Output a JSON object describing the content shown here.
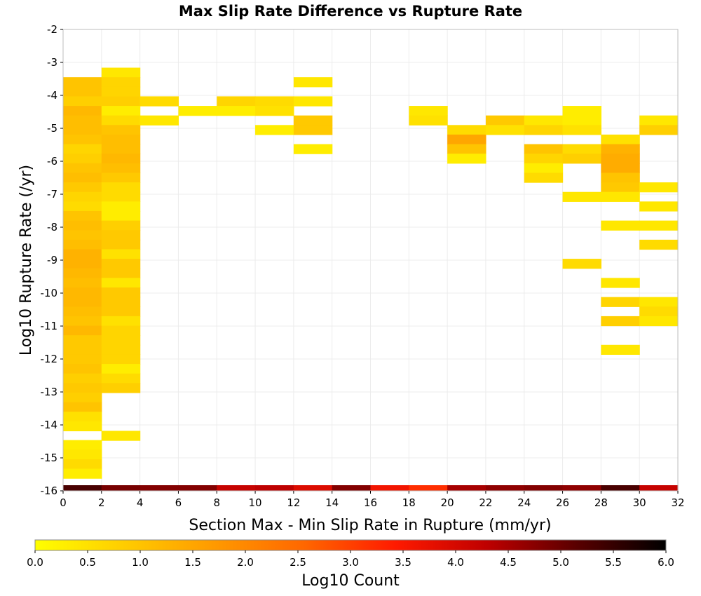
{
  "chart_data": {
    "type": "heatmap",
    "title": "Max Slip Rate Difference vs Rupture Rate",
    "xlabel": "Section Max - Min Slip Rate in Rupture (mm/yr)",
    "ylabel": "Log10 Rupture Rate (/yr)",
    "xlim": [
      0,
      32
    ],
    "ylim": [
      -16,
      -2
    ],
    "x_ticks": [
      "0",
      "2",
      "4",
      "6",
      "8",
      "10",
      "12",
      "14",
      "16",
      "18",
      "20",
      "22",
      "24",
      "26",
      "28",
      "30",
      "32"
    ],
    "y_ticks": [
      "-2",
      "-3",
      "-4",
      "-5",
      "-6",
      "-7",
      "-8",
      "-9",
      "-10",
      "-11",
      "-12",
      "-13",
      "-14",
      "-15",
      "-16"
    ],
    "x_bin_width": 2,
    "y_bin_height": 0.29,
    "grid": true,
    "colorbar": {
      "label": "Log10 Count",
      "range": [
        0,
        6
      ],
      "ticks": [
        "0.0",
        "0.5",
        "1.0",
        "1.5",
        "2.0",
        "2.5",
        "3.0",
        "3.5",
        "4.0",
        "4.5",
        "5.0",
        "5.5",
        "6.0"
      ],
      "stops": [
        "#ffff00",
        "#ffcc00",
        "#ff9900",
        "#ff6600",
        "#ff1a00",
        "#c00000",
        "#5a0000",
        "#000000"
      ]
    },
    "cells": [
      {
        "x": 0,
        "y": -3.74,
        "v": 1.0
      },
      {
        "x": 0,
        "y": -4.03,
        "v": 1.0
      },
      {
        "x": 0,
        "y": -4.32,
        "v": 0.8
      },
      {
        "x": 0,
        "y": -4.61,
        "v": 1.2
      },
      {
        "x": 0,
        "y": -4.9,
        "v": 1.1
      },
      {
        "x": 0,
        "y": -5.19,
        "v": 1.1
      },
      {
        "x": 0,
        "y": -5.48,
        "v": 1.0
      },
      {
        "x": 0,
        "y": -5.77,
        "v": 0.7
      },
      {
        "x": 0,
        "y": -6.06,
        "v": 0.8
      },
      {
        "x": 0,
        "y": -6.35,
        "v": 1.0
      },
      {
        "x": 0,
        "y": -6.64,
        "v": 1.1
      },
      {
        "x": 0,
        "y": -6.93,
        "v": 0.9
      },
      {
        "x": 0,
        "y": -7.22,
        "v": 0.7
      },
      {
        "x": 0,
        "y": -7.51,
        "v": 0.6
      },
      {
        "x": 0,
        "y": -7.8,
        "v": 1.0
      },
      {
        "x": 0,
        "y": -8.09,
        "v": 1.1
      },
      {
        "x": 0,
        "y": -8.38,
        "v": 1.0
      },
      {
        "x": 0,
        "y": -8.67,
        "v": 1.1
      },
      {
        "x": 0,
        "y": -8.96,
        "v": 1.3
      },
      {
        "x": 0,
        "y": -9.25,
        "v": 1.3
      },
      {
        "x": 0,
        "y": -9.54,
        "v": 1.2
      },
      {
        "x": 0,
        "y": -9.83,
        "v": 1.1
      },
      {
        "x": 0,
        "y": -10.12,
        "v": 1.2
      },
      {
        "x": 0,
        "y": -10.41,
        "v": 1.2
      },
      {
        "x": 0,
        "y": -10.7,
        "v": 1.1
      },
      {
        "x": 0,
        "y": -10.99,
        "v": 1.0
      },
      {
        "x": 0,
        "y": -11.28,
        "v": 1.2
      },
      {
        "x": 0,
        "y": -11.57,
        "v": 0.9
      },
      {
        "x": 0,
        "y": -11.86,
        "v": 0.9
      },
      {
        "x": 0,
        "y": -12.15,
        "v": 0.9
      },
      {
        "x": 0,
        "y": -12.44,
        "v": 1.0
      },
      {
        "x": 0,
        "y": -12.73,
        "v": 0.8
      },
      {
        "x": 0,
        "y": -13.02,
        "v": 0.9
      },
      {
        "x": 0,
        "y": -13.31,
        "v": 0.8
      },
      {
        "x": 0,
        "y": -13.6,
        "v": 1.0
      },
      {
        "x": 0,
        "y": -13.89,
        "v": 0.5
      },
      {
        "x": 0,
        "y": -14.18,
        "v": 0.4
      },
      {
        "x": 0,
        "y": -14.75,
        "v": 0.3
      },
      {
        "x": 0,
        "y": -15.04,
        "v": 0.4
      },
      {
        "x": 0,
        "y": -15.33,
        "v": 0.6
      },
      {
        "x": 0,
        "y": -15.62,
        "v": 0.3
      },
      {
        "x": 2,
        "y": -3.45,
        "v": 0.4
      },
      {
        "x": 2,
        "y": -3.74,
        "v": 0.7
      },
      {
        "x": 2,
        "y": -4.03,
        "v": 0.7
      },
      {
        "x": 2,
        "y": -4.32,
        "v": 0.8
      },
      {
        "x": 2,
        "y": -4.61,
        "v": 0.3
      },
      {
        "x": 2,
        "y": -4.9,
        "v": 0.6
      },
      {
        "x": 2,
        "y": -5.19,
        "v": 1.0
      },
      {
        "x": 2,
        "y": -5.48,
        "v": 1.1
      },
      {
        "x": 2,
        "y": -5.77,
        "v": 1.1
      },
      {
        "x": 2,
        "y": -6.06,
        "v": 1.2
      },
      {
        "x": 2,
        "y": -6.35,
        "v": 1.1
      },
      {
        "x": 2,
        "y": -6.64,
        "v": 0.9
      },
      {
        "x": 2,
        "y": -6.93,
        "v": 0.6
      },
      {
        "x": 2,
        "y": -7.22,
        "v": 0.6
      },
      {
        "x": 2,
        "y": -7.51,
        "v": 0.3
      },
      {
        "x": 2,
        "y": -7.8,
        "v": 0.3
      },
      {
        "x": 2,
        "y": -8.09,
        "v": 0.8
      },
      {
        "x": 2,
        "y": -8.38,
        "v": 0.9
      },
      {
        "x": 2,
        "y": -8.67,
        "v": 0.9
      },
      {
        "x": 2,
        "y": -8.96,
        "v": 0.5
      },
      {
        "x": 2,
        "y": -9.25,
        "v": 0.9
      },
      {
        "x": 2,
        "y": -9.54,
        "v": 0.9
      },
      {
        "x": 2,
        "y": -9.83,
        "v": 0.4
      },
      {
        "x": 2,
        "y": -10.12,
        "v": 0.9
      },
      {
        "x": 2,
        "y": -10.41,
        "v": 0.9
      },
      {
        "x": 2,
        "y": -10.7,
        "v": 0.9
      },
      {
        "x": 2,
        "y": -10.99,
        "v": 0.5
      },
      {
        "x": 2,
        "y": -11.28,
        "v": 0.7
      },
      {
        "x": 2,
        "y": -11.57,
        "v": 0.7
      },
      {
        "x": 2,
        "y": -11.86,
        "v": 0.7
      },
      {
        "x": 2,
        "y": -12.15,
        "v": 0.7
      },
      {
        "x": 2,
        "y": -12.44,
        "v": 0.3
      },
      {
        "x": 2,
        "y": -12.73,
        "v": 0.6
      },
      {
        "x": 2,
        "y": -13.02,
        "v": 0.8
      },
      {
        "x": 2,
        "y": -14.47,
        "v": 0.4
      },
      {
        "x": 4,
        "y": -4.32,
        "v": 0.6
      },
      {
        "x": 4,
        "y": -4.9,
        "v": 0.4
      },
      {
        "x": 6,
        "y": -4.61,
        "v": 0.3
      },
      {
        "x": 8,
        "y": -4.32,
        "v": 0.7
      },
      {
        "x": 8,
        "y": -4.61,
        "v": 0.3
      },
      {
        "x": 10,
        "y": -4.32,
        "v": 0.6
      },
      {
        "x": 10,
        "y": -4.61,
        "v": 0.5
      },
      {
        "x": 10,
        "y": -5.19,
        "v": 0.3
      },
      {
        "x": 12,
        "y": -3.74,
        "v": 0.4
      },
      {
        "x": 12,
        "y": -4.32,
        "v": 0.4
      },
      {
        "x": 12,
        "y": -4.9,
        "v": 0.9
      },
      {
        "x": 12,
        "y": -5.19,
        "v": 0.9
      },
      {
        "x": 12,
        "y": -5.77,
        "v": 0.3
      },
      {
        "x": 18,
        "y": -4.61,
        "v": 0.4
      },
      {
        "x": 18,
        "y": -4.9,
        "v": 0.5
      },
      {
        "x": 20,
        "y": -5.19,
        "v": 0.6
      },
      {
        "x": 20,
        "y": -5.48,
        "v": 1.5
      },
      {
        "x": 20,
        "y": -5.77,
        "v": 1.0
      },
      {
        "x": 20,
        "y": -6.06,
        "v": 0.3
      },
      {
        "x": 22,
        "y": -4.9,
        "v": 0.9
      },
      {
        "x": 22,
        "y": -5.19,
        "v": 0.5
      },
      {
        "x": 24,
        "y": -4.9,
        "v": 0.4
      },
      {
        "x": 24,
        "y": -5.19,
        "v": 0.7
      },
      {
        "x": 24,
        "y": -5.77,
        "v": 1.0
      },
      {
        "x": 24,
        "y": -6.06,
        "v": 0.7
      },
      {
        "x": 24,
        "y": -6.35,
        "v": 0.3
      },
      {
        "x": 24,
        "y": -6.64,
        "v": 0.6
      },
      {
        "x": 26,
        "y": -4.61,
        "v": 0.3
      },
      {
        "x": 26,
        "y": -4.9,
        "v": 0.3
      },
      {
        "x": 26,
        "y": -5.19,
        "v": 0.5
      },
      {
        "x": 26,
        "y": -5.77,
        "v": 0.6
      },
      {
        "x": 26,
        "y": -6.06,
        "v": 0.8
      },
      {
        "x": 26,
        "y": -7.22,
        "v": 0.4
      },
      {
        "x": 26,
        "y": -9.25,
        "v": 0.6
      },
      {
        "x": 28,
        "y": -5.48,
        "v": 0.5
      },
      {
        "x": 28,
        "y": -5.77,
        "v": 1.3
      },
      {
        "x": 28,
        "y": -6.06,
        "v": 1.4
      },
      {
        "x": 28,
        "y": -6.35,
        "v": 1.4
      },
      {
        "x": 28,
        "y": -6.64,
        "v": 1.0
      },
      {
        "x": 28,
        "y": -6.93,
        "v": 0.9
      },
      {
        "x": 28,
        "y": -7.22,
        "v": 0.4
      },
      {
        "x": 28,
        "y": -8.09,
        "v": 0.4
      },
      {
        "x": 28,
        "y": -9.83,
        "v": 0.4
      },
      {
        "x": 28,
        "y": -10.41,
        "v": 0.7
      },
      {
        "x": 28,
        "y": -10.99,
        "v": 0.8
      },
      {
        "x": 28,
        "y": -11.86,
        "v": 0.4
      },
      {
        "x": 30,
        "y": -4.9,
        "v": 0.4
      },
      {
        "x": 30,
        "y": -5.19,
        "v": 0.8
      },
      {
        "x": 30,
        "y": -6.93,
        "v": 0.4
      },
      {
        "x": 30,
        "y": -7.51,
        "v": 0.4
      },
      {
        "x": 30,
        "y": -8.09,
        "v": 0.4
      },
      {
        "x": 30,
        "y": -8.67,
        "v": 0.6
      },
      {
        "x": 30,
        "y": -10.41,
        "v": 0.4
      },
      {
        "x": 30,
        "y": -10.7,
        "v": 0.6
      },
      {
        "x": 30,
        "y": -10.99,
        "v": 0.4
      }
    ],
    "bottom_row": {
      "y": -16,
      "values": [
        5.3,
        4.9,
        4.8,
        4.8,
        4.2,
        4.3,
        3.9,
        4.8,
        3.6,
        3.2,
        4.5,
        4.7,
        4.8,
        4.7,
        5.3,
        4.2
      ]
    }
  }
}
